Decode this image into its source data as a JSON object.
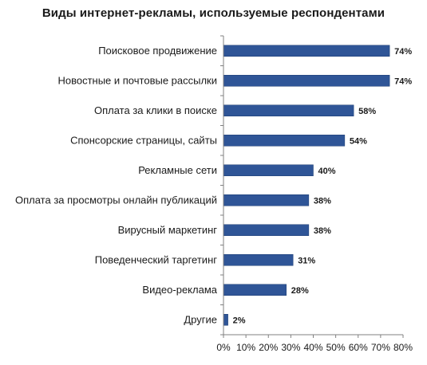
{
  "chart_data": {
    "type": "bar",
    "orientation": "horizontal",
    "title": "Виды интернет-рекламы,  используемые  респондентами",
    "categories": [
      "Поисковое продвижение",
      "Новостные и почтовые рассылки",
      "Оплата за клики в поиске",
      "Спонсорские страницы, сайты",
      "Рекламные сети",
      "Оплата за просмотры онлайн публикаций",
      "Вирусный маркетинг",
      "Поведенческий таргетинг",
      "Видео-реклама",
      "Другие"
    ],
    "values": [
      74,
      74,
      58,
      54,
      40,
      38,
      38,
      31,
      28,
      2
    ],
    "value_labels": [
      "74%",
      "74%",
      "58%",
      "54%",
      "40%",
      "38%",
      "38%",
      "31%",
      "28%",
      "2%"
    ],
    "xlim": [
      0,
      80
    ],
    "xticks": [
      "0%",
      "10%",
      "20%",
      "30%",
      "40%",
      "50%",
      "60%",
      "70%",
      "80%"
    ],
    "grid": false,
    "bar_color": "#2f5597"
  }
}
